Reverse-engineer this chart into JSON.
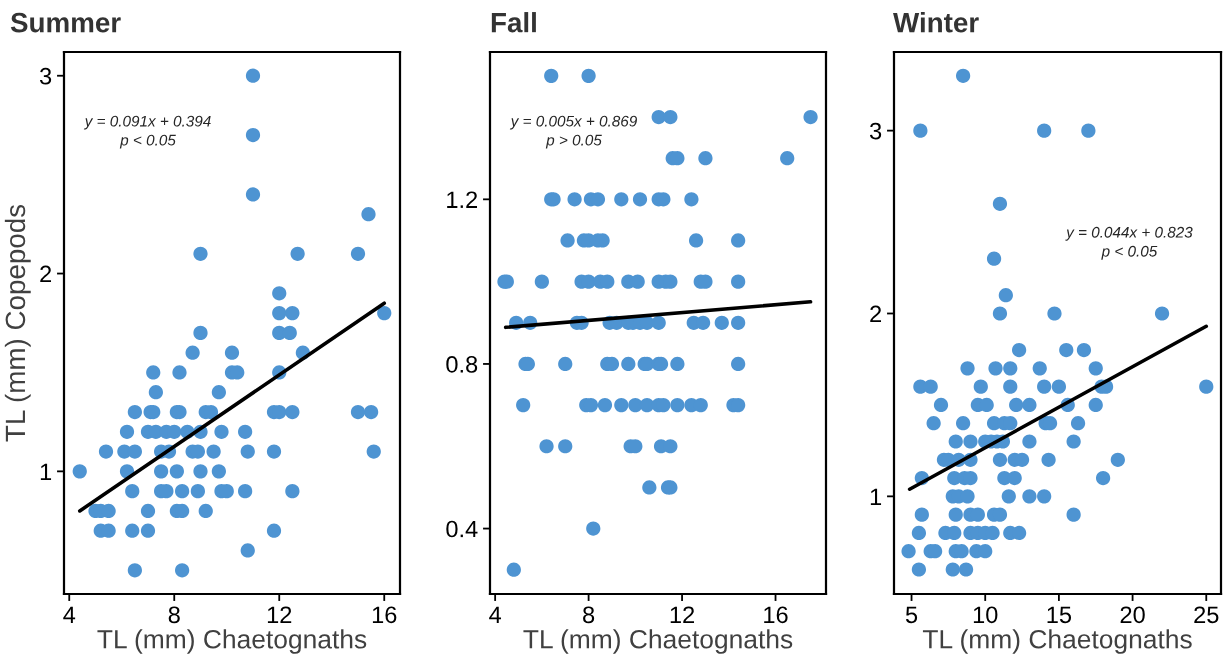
{
  "chart_data": [
    {
      "type": "scatter",
      "title": "Summer",
      "xlabel": "TL (mm) Chaetognaths",
      "ylabel": "TL (mm) Copepods",
      "xlim": [
        3.8,
        16.6
      ],
      "ylim": [
        0.38,
        3.12
      ],
      "xticks": [
        4,
        8,
        12,
        16
      ],
      "yticks": [
        1,
        2,
        3
      ],
      "annotations": [
        "y = 0.091x + 0.394",
        "p < 0.05"
      ],
      "series": [
        {
          "marker": "circle",
          "color": "#4e94d2",
          "x": [
            11.0,
            11.0,
            11.0,
            15.4,
            9.0,
            12.7,
            15.0,
            12.0,
            12.0,
            12.5,
            16.0,
            9.0,
            12.0,
            12.4,
            8.7,
            10.2,
            12.9,
            7.2,
            8.2,
            10.2,
            10.4,
            12.0,
            7.3,
            9.7,
            6.5,
            7.1,
            7.2,
            8.1,
            8.2,
            9.2,
            9.4,
            11.8,
            12.0,
            12.5,
            15.0,
            15.5,
            6.2,
            7.0,
            7.3,
            7.7,
            8.0,
            8.5,
            9.0,
            9.8,
            10.7,
            5.4,
            6.1,
            6.5,
            7.5,
            7.8,
            8.7,
            8.9,
            9.5,
            10.8,
            11.8,
            15.6,
            4.4,
            6.2,
            7.5,
            8.1,
            9.0,
            9.7,
            6.4,
            7.5,
            7.7,
            8.3,
            8.9,
            9.8,
            10.0,
            10.7,
            12.5,
            5.0,
            5.2,
            5.5,
            7.0,
            8.1,
            8.3,
            9.2,
            5.2,
            5.5,
            6.4,
            7.0,
            11.8,
            10.8,
            6.5,
            8.3
          ],
          "values": [
            3.0,
            2.7,
            2.4,
            2.3,
            2.1,
            2.1,
            2.1,
            1.9,
            1.8,
            1.8,
            1.8,
            1.7,
            1.7,
            1.7,
            1.6,
            1.6,
            1.6,
            1.5,
            1.5,
            1.5,
            1.5,
            1.5,
            1.4,
            1.4,
            1.3,
            1.3,
            1.3,
            1.3,
            1.3,
            1.3,
            1.3,
            1.3,
            1.3,
            1.3,
            1.3,
            1.3,
            1.2,
            1.2,
            1.2,
            1.2,
            1.2,
            1.2,
            1.2,
            1.2,
            1.2,
            1.1,
            1.1,
            1.1,
            1.1,
            1.1,
            1.1,
            1.1,
            1.1,
            1.1,
            1.1,
            1.1,
            1.0,
            1.0,
            1.0,
            1.0,
            1.0,
            1.0,
            0.9,
            0.9,
            0.9,
            0.9,
            0.9,
            0.9,
            0.9,
            0.9,
            0.9,
            0.8,
            0.8,
            0.8,
            0.8,
            0.8,
            0.8,
            0.8,
            0.7,
            0.7,
            0.7,
            0.7,
            0.7,
            0.6,
            0.5,
            0.5
          ]
        },
        {
          "type": "line",
          "line_style": "solid",
          "color": "#000000",
          "x": [
            4.4,
            16.0
          ],
          "values": [
            0.8,
            1.85
          ]
        }
      ]
    },
    {
      "type": "scatter",
      "title": "Fall",
      "xlabel": "TL (mm) Chaetognaths",
      "xlim": [
        3.78,
        18.16
      ],
      "ylim": [
        0.241,
        1.558
      ],
      "xticks": [
        4,
        8,
        12,
        16
      ],
      "yticks": [
        0.4,
        0.8,
        1.2
      ],
      "annotations": [
        "y = 0.005x + 0.869",
        "p > 0.05"
      ],
      "series": [
        {
          "marker": "circle",
          "color": "#4e94d2",
          "x": [
            6.4,
            8.0,
            11.0,
            11.5,
            17.5,
            11.6,
            11.8,
            13.0,
            16.5,
            6.4,
            6.5,
            7.4,
            8.1,
            8.4,
            9.4,
            10.2,
            11.0,
            11.2,
            12.4,
            7.1,
            7.8,
            8.0,
            8.4,
            8.6,
            12.6,
            14.4,
            4.4,
            4.5,
            6.0,
            7.7,
            8.0,
            8.5,
            8.8,
            9.7,
            10.1,
            11.0,
            11.3,
            11.5,
            12.8,
            13.0,
            14.4,
            4.9,
            5.5,
            7.5,
            7.7,
            8.9,
            9.2,
            9.7,
            9.9,
            10.2,
            10.5,
            11.0,
            12.5,
            12.9,
            13.7,
            14.4,
            5.3,
            5.4,
            7.0,
            8.8,
            9.0,
            9.7,
            10.4,
            10.5,
            11.0,
            11.1,
            11.8,
            14.4,
            5.2,
            7.9,
            8.1,
            8.7,
            9.4,
            10.0,
            10.5,
            11.0,
            11.2,
            11.8,
            12.4,
            12.8,
            14.2,
            14.4,
            6.2,
            7.0,
            9.8,
            10.0,
            11.1,
            11.5,
            10.6,
            11.4,
            11.5,
            8.2,
            4.8
          ],
          "values": [
            1.5,
            1.5,
            1.4,
            1.4,
            1.4,
            1.3,
            1.3,
            1.3,
            1.3,
            1.2,
            1.2,
            1.2,
            1.2,
            1.2,
            1.2,
            1.2,
            1.2,
            1.2,
            1.2,
            1.1,
            1.1,
            1.1,
            1.1,
            1.1,
            1.1,
            1.1,
            1.0,
            1.0,
            1.0,
            1.0,
            1.0,
            1.0,
            1.0,
            1.0,
            1.0,
            1.0,
            1.0,
            1.0,
            1.0,
            1.0,
            1.0,
            0.9,
            0.9,
            0.9,
            0.9,
            0.9,
            0.9,
            0.9,
            0.9,
            0.9,
            0.9,
            0.9,
            0.9,
            0.9,
            0.9,
            0.9,
            0.8,
            0.8,
            0.8,
            0.8,
            0.8,
            0.8,
            0.8,
            0.8,
            0.8,
            0.8,
            0.8,
            0.8,
            0.7,
            0.7,
            0.7,
            0.7,
            0.7,
            0.7,
            0.7,
            0.7,
            0.7,
            0.7,
            0.7,
            0.7,
            0.7,
            0.7,
            0.6,
            0.6,
            0.6,
            0.6,
            0.6,
            0.6,
            0.5,
            0.5,
            0.5,
            0.4,
            0.3
          ]
        },
        {
          "type": "line",
          "line_style": "solid",
          "color": "#000000",
          "x": [
            4.45,
            17.5
          ],
          "values": [
            0.889,
            0.951
          ]
        }
      ]
    },
    {
      "type": "scatter",
      "title": "Winter",
      "xlabel": "TL (mm) Chaetognaths",
      "xlim": [
        3.81,
        26.0
      ],
      "ylim": [
        0.466,
        3.43
      ],
      "xticks": [
        5,
        10,
        15,
        20,
        25
      ],
      "yticks": [
        1,
        2,
        3
      ],
      "annotations": [
        "y = 0.044x + 0.823",
        "p < 0.05"
      ],
      "series": [
        {
          "marker": "circle",
          "color": "#4e94d2",
          "x": [
            8.5,
            5.6,
            14.0,
            17.0,
            11.0,
            10.6,
            11.4,
            11.0,
            14.7,
            22.0,
            12.3,
            15.5,
            16.7,
            8.8,
            10.7,
            11.7,
            13.7,
            17.5,
            5.6,
            6.3,
            9.7,
            11.7,
            14.0,
            15.0,
            17.9,
            18.2,
            25.0,
            7.0,
            9.5,
            10.1,
            12.1,
            13.0,
            15.6,
            17.5,
            6.5,
            8.5,
            10.6,
            11.3,
            11.7,
            14.1,
            14.4,
            16.3,
            8.0,
            9.0,
            10.0,
            10.4,
            10.8,
            11.2,
            13.0,
            16.0,
            7.2,
            7.5,
            8.2,
            9.0,
            11.0,
            12.0,
            12.5,
            14.3,
            19.0,
            5.7,
            7.9,
            8.6,
            9.0,
            11.3,
            12.0,
            18.0,
            7.8,
            8.2,
            8.8,
            11.6,
            13.0,
            14.0,
            5.7,
            8.0,
            9.0,
            9.5,
            10.6,
            11.0,
            16.0,
            5.5,
            7.3,
            7.9,
            9.0,
            9.5,
            10.0,
            10.5,
            11.7,
            12.3,
            4.8,
            6.3,
            6.6,
            8.0,
            8.4,
            9.4,
            10.0,
            5.5,
            7.8,
            8.7
          ],
          "values": [
            3.3,
            3.0,
            3.0,
            3.0,
            2.6,
            2.3,
            2.1,
            2.0,
            2.0,
            2.0,
            1.8,
            1.8,
            1.8,
            1.7,
            1.7,
            1.7,
            1.7,
            1.7,
            1.6,
            1.6,
            1.6,
            1.6,
            1.6,
            1.6,
            1.6,
            1.6,
            1.6,
            1.5,
            1.5,
            1.5,
            1.5,
            1.5,
            1.5,
            1.5,
            1.4,
            1.4,
            1.4,
            1.4,
            1.4,
            1.4,
            1.4,
            1.4,
            1.3,
            1.3,
            1.3,
            1.3,
            1.3,
            1.3,
            1.3,
            1.3,
            1.2,
            1.2,
            1.2,
            1.2,
            1.2,
            1.2,
            1.2,
            1.2,
            1.2,
            1.1,
            1.1,
            1.1,
            1.1,
            1.1,
            1.1,
            1.1,
            1.0,
            1.0,
            1.0,
            1.0,
            1.0,
            1.0,
            0.9,
            0.9,
            0.9,
            0.9,
            0.9,
            0.9,
            0.9,
            0.8,
            0.8,
            0.8,
            0.8,
            0.8,
            0.8,
            0.8,
            0.8,
            0.8,
            0.7,
            0.7,
            0.7,
            0.7,
            0.7,
            0.7,
            0.7,
            0.6,
            0.6,
            0.6
          ]
        },
        {
          "type": "line",
          "line_style": "solid",
          "color": "#000000",
          "x": [
            4.87,
            25.0
          ],
          "values": [
            1.039,
            1.93
          ]
        }
      ]
    }
  ]
}
